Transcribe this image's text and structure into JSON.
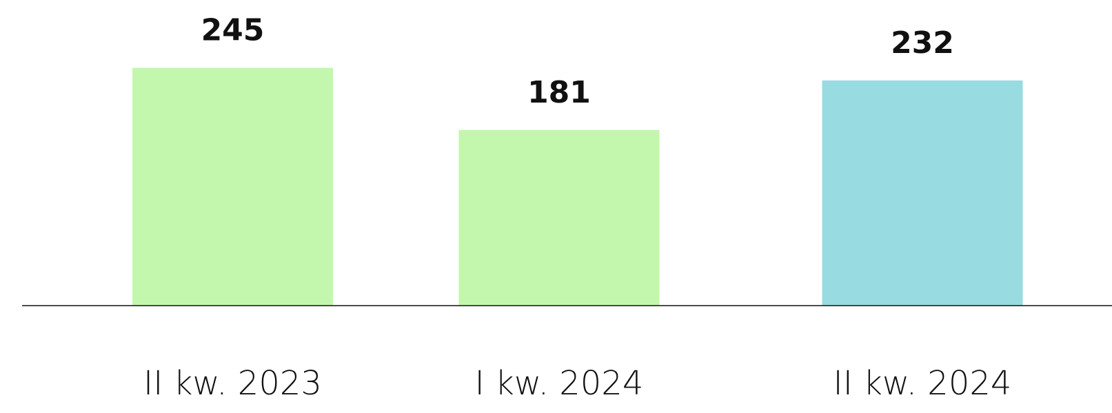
{
  "chart_data": {
    "type": "bar",
    "categories": [
      "II kw. 2023",
      "I kw. 2024",
      "II kw. 2024"
    ],
    "values": [
      245,
      181,
      232
    ],
    "colors": [
      "#c3f7ad",
      "#c3f7ad",
      "#98dbe0"
    ],
    "ylim": [
      0,
      300
    ]
  }
}
